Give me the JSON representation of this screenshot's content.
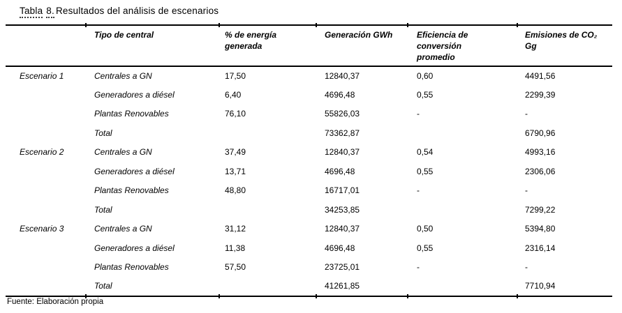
{
  "title": {
    "word1": "Tabla",
    "word2": "8.",
    "rest": "Resultados del análisis de escenarios"
  },
  "table": {
    "headers": {
      "scenario": "",
      "tipo": "Tipo de central",
      "pct": "% de energía generada",
      "gwh": "Generación GWh",
      "efic": "Eficiencia de conversión promedio",
      "emis": "Emisiones de CO₂ Gg"
    },
    "rows": [
      {
        "scenario": "Escenario 1",
        "tipo": "Centrales a GN",
        "pct": "17,50",
        "gwh": "12840,37",
        "efic": "0,60",
        "emis": "4491,56"
      },
      {
        "scenario": "",
        "tipo": "Generadores a diésel",
        "pct": "6,40",
        "gwh": "4696,48",
        "efic": "0,55",
        "emis": "2299,39"
      },
      {
        "scenario": "",
        "tipo": "Plantas Renovables",
        "pct": "76,10",
        "gwh": "55826,03",
        "efic": "-",
        "emis": "-"
      },
      {
        "scenario": "",
        "tipo": "Total",
        "pct": "",
        "gwh": "73362,87",
        "efic": "",
        "emis": "6790,96"
      },
      {
        "scenario": "Escenario 2",
        "tipo": "Centrales a GN",
        "pct": "37,49",
        "gwh": "12840,37",
        "efic": "0,54",
        "emis": "4993,16"
      },
      {
        "scenario": "",
        "tipo": "Generadores a diésel",
        "pct": "13,71",
        "gwh": "4696,48",
        "efic": "0,55",
        "emis": "2306,06"
      },
      {
        "scenario": "",
        "tipo": "Plantas Renovables",
        "pct": "48,80",
        "gwh": "16717,01",
        "efic": "-",
        "emis": "-"
      },
      {
        "scenario": "",
        "tipo": "Total",
        "pct": "",
        "gwh": "34253,85",
        "efic": "",
        "emis": "7299,22"
      },
      {
        "scenario": "Escenario 3",
        "tipo": "Centrales a GN",
        "pct": "31,12",
        "gwh": "12840,37",
        "efic": "0,50",
        "emis": "5394,80"
      },
      {
        "scenario": "",
        "tipo": "Generadores a diésel",
        "pct": "11,38",
        "gwh": "4696,48",
        "efic": "0,55",
        "emis": "2316,14"
      },
      {
        "scenario": "",
        "tipo": "Plantas Renovables",
        "pct": "57,50",
        "gwh": "23725,01",
        "efic": "-",
        "emis": "-"
      },
      {
        "scenario": "",
        "tipo": "Total",
        "pct": "",
        "gwh": "41261,85",
        "efic": "",
        "emis": "7710,94"
      }
    ]
  },
  "source_note": "Fuente: Elaboración propia",
  "colors": {
    "text": "#000000",
    "background": "#ffffff",
    "rule": "#000000"
  }
}
